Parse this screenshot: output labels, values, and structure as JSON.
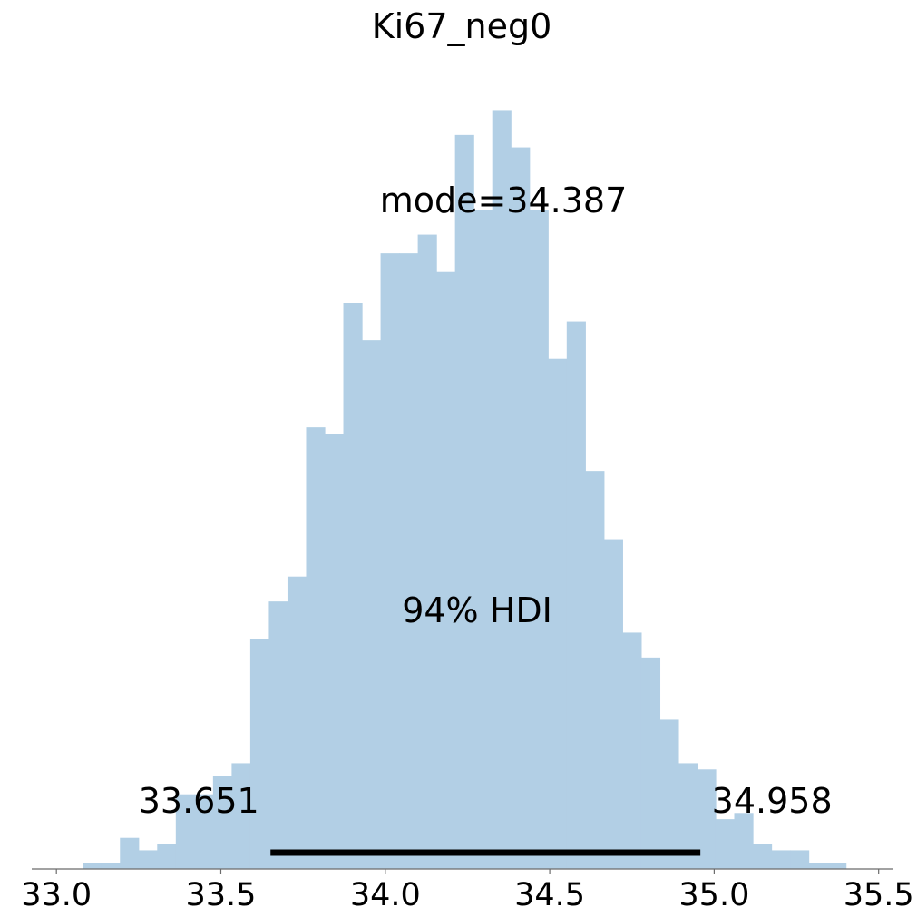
{
  "chart_data": {
    "type": "bar",
    "title": "Ki67_neg0",
    "xlabel": "",
    "ylabel": "",
    "xlim": [
      32.925,
      35.545
    ],
    "xticks": [
      33.0,
      33.5,
      34.0,
      34.5,
      35.0,
      35.5
    ],
    "xtick_labels": [
      "33.0",
      "33.5",
      "34.0",
      "34.5",
      "35.0",
      "35.5"
    ],
    "bar_color": "#b2cfe5",
    "bin_start": 33.08,
    "bin_width": 0.0566,
    "counts": [
      1,
      1,
      5,
      3,
      4,
      12,
      12,
      15,
      17,
      37,
      43,
      47,
      71,
      70,
      91,
      85,
      99,
      99,
      102,
      96,
      118,
      106,
      122,
      116,
      106,
      82,
      88,
      64,
      53,
      38,
      34,
      24,
      17,
      16,
      8,
      9,
      4,
      3,
      3,
      1,
      1
    ],
    "hist_ylim": [
      0,
      126
    ],
    "mode_label": "mode=34.387",
    "hdi_label": "94% HDI",
    "hdi": [
      33.651,
      34.958
    ],
    "hdi_low_label": "33.651",
    "hdi_high_label": "34.958",
    "grid": false,
    "legend": "none"
  }
}
